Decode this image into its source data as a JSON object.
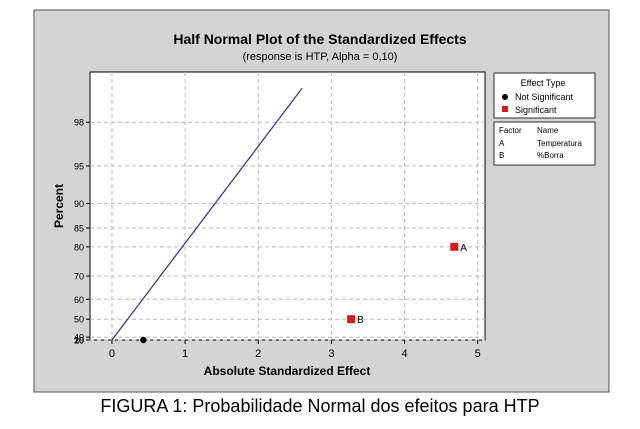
{
  "caption": "FIGURA 1: Probabilidade Normal dos efeitos para HTP",
  "chart_data": {
    "type": "scatter",
    "title": "Half Normal Plot of the Standardized Effects",
    "subtitle": "(response is HTP, Alpha = 0,10)",
    "xlabel": "Absolute Standardized Effect",
    "ylabel": "Percent",
    "xlim": [
      -0.3,
      5.1
    ],
    "x_ticks": [
      0,
      1,
      2,
      3,
      4,
      5
    ],
    "y_ticks": [
      0,
      10,
      20,
      30,
      40,
      50,
      60,
      70,
      80,
      85,
      90,
      95,
      98
    ],
    "y_scale": "half-normal probability",
    "grid": true,
    "reference_line": {
      "x": [
        0,
        2.6
      ],
      "y": [
        0,
        99.1
      ]
    },
    "points": [
      {
        "x": 0.43,
        "y": 21,
        "label": "",
        "significant": false
      },
      {
        "x": 3.27,
        "y": 50,
        "label": "B",
        "significant": true
      },
      {
        "x": 4.68,
        "y": 80,
        "label": "A",
        "significant": true
      }
    ],
    "legend": {
      "title": "Effect Type",
      "items": [
        {
          "label": "Not Significant",
          "marker": "circle",
          "color": "#000000"
        },
        {
          "label": "Significant",
          "marker": "square",
          "color": "#d41c1c"
        }
      ]
    },
    "factor_table": {
      "headers": [
        "Factor",
        "Name"
      ],
      "rows": [
        [
          "A",
          "Temperatura"
        ],
        [
          "B",
          "%Borra"
        ]
      ]
    },
    "colors": {
      "outer_bg": "#d4d4d4",
      "plot_bg": "#ffffff",
      "line": "#2a2a8c",
      "significant": "#d41c1c",
      "not_significant": "#000000"
    }
  }
}
